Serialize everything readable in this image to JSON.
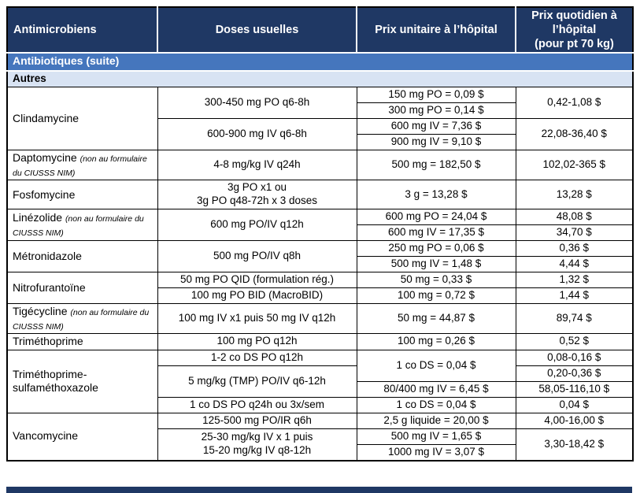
{
  "colors": {
    "header_bg": "#1f3864",
    "header_text": "#ffffff",
    "section_suite_bg": "#4576bd",
    "section_suite_text": "#ffffff",
    "section_autres_bg": "#d8e3f3",
    "section_autres_text": "#000000",
    "border": "#000000",
    "body_text": "#000000"
  },
  "table": {
    "columns": [
      "Antimicrobiens",
      "Doses usuelles",
      "Prix unitaire à l’hôpital",
      "Prix quotidien à l’hôpital\n(pour pt 70 kg)"
    ],
    "rows": [
      {
        "kind": "section-suite",
        "cells": [
          {
            "col": "section",
            "text": "Antibiotiques (suite)",
            "colspan": 4
          }
        ]
      },
      {
        "kind": "section-autres",
        "cells": [
          {
            "col": "section",
            "text": "Autres",
            "colspan": 4
          }
        ]
      },
      {
        "cells": [
          {
            "col": "name",
            "text": "Clindamycine",
            "rowspan": 4
          },
          {
            "col": "dose",
            "text": "300-450 mg PO q6-8h",
            "rowspan": 2
          },
          {
            "col": "unit",
            "text": "150 mg PO = 0,09 $"
          },
          {
            "col": "daily",
            "text": "0,42-1,08 $",
            "rowspan": 2
          }
        ]
      },
      {
        "cells": [
          {
            "col": "unit",
            "text": "300 mg PO = 0,14 $"
          }
        ]
      },
      {
        "cells": [
          {
            "col": "dose",
            "text": "600-900 mg IV q6-8h",
            "rowspan": 2
          },
          {
            "col": "unit",
            "text": "600 mg IV = 7,36 $"
          },
          {
            "col": "daily",
            "text": "22,08-36,40 $",
            "rowspan": 2
          }
        ]
      },
      {
        "cells": [
          {
            "col": "unit",
            "text": "900 mg IV = 9,10 $"
          }
        ]
      },
      {
        "cells": [
          {
            "col": "name",
            "text": "Daptomycine ",
            "note": "(non au formulaire du CIUSSS NIM)"
          },
          {
            "col": "dose",
            "text": "4-8 mg/kg IV q24h"
          },
          {
            "col": "unit",
            "text": "500 mg = 182,50 $"
          },
          {
            "col": "daily",
            "text": "102,02-365 $"
          }
        ]
      },
      {
        "cells": [
          {
            "col": "name",
            "text": "Fosfomycine"
          },
          {
            "col": "dose",
            "text": "3g PO x1 ou\n3g PO q48-72h x 3 doses"
          },
          {
            "col": "unit",
            "text": "3 g = 13,28 $"
          },
          {
            "col": "daily",
            "text": "13,28 $"
          }
        ]
      },
      {
        "cells": [
          {
            "col": "name",
            "text": "Linézolide ",
            "note": "(non au formulaire du CIUSSS NIM)",
            "rowspan": 2
          },
          {
            "col": "dose",
            "text": "600 mg PO/IV q12h",
            "rowspan": 2
          },
          {
            "col": "unit",
            "text": "600 mg PO = 24,04 $"
          },
          {
            "col": "daily",
            "text": "48,08 $"
          }
        ]
      },
      {
        "cells": [
          {
            "col": "unit",
            "text": "600 mg IV = 17,35 $"
          },
          {
            "col": "daily",
            "text": "34,70 $"
          }
        ]
      },
      {
        "cells": [
          {
            "col": "name",
            "text": "Métronidazole",
            "rowspan": 2
          },
          {
            "col": "dose",
            "text": "500 mg PO/IV q8h",
            "rowspan": 2
          },
          {
            "col": "unit",
            "text": "250 mg PO = 0,06 $"
          },
          {
            "col": "daily",
            "text": "0,36 $"
          }
        ]
      },
      {
        "cells": [
          {
            "col": "unit",
            "text": "500 mg IV = 1,48 $"
          },
          {
            "col": "daily",
            "text": "4,44 $"
          }
        ]
      },
      {
        "cells": [
          {
            "col": "name",
            "text": "Nitrofurantoïne",
            "rowspan": 2
          },
          {
            "col": "dose",
            "text": "50 mg PO QID (formulation rég.)"
          },
          {
            "col": "unit",
            "text": "50 mg = 0,33 $"
          },
          {
            "col": "daily",
            "text": "1,32 $"
          }
        ]
      },
      {
        "cells": [
          {
            "col": "dose",
            "text": "100 mg PO BID (MacroBID)"
          },
          {
            "col": "unit",
            "text": "100 mg = 0,72 $"
          },
          {
            "col": "daily",
            "text": "1,44 $"
          }
        ]
      },
      {
        "cells": [
          {
            "col": "name",
            "text": "Tigécycline ",
            "note": "(non au formulaire du CIUSSS NIM)"
          },
          {
            "col": "dose",
            "text": "100 mg IV x1 puis 50 mg IV q12h"
          },
          {
            "col": "unit",
            "text": "50 mg = 44,87 $"
          },
          {
            "col": "daily",
            "text": "89,74 $"
          }
        ]
      },
      {
        "cells": [
          {
            "col": "name",
            "text": "Triméthoprime"
          },
          {
            "col": "dose",
            "text": "100 mg PO q12h"
          },
          {
            "col": "unit",
            "text": "100 mg = 0,26 $"
          },
          {
            "col": "daily",
            "text": "0,52 $"
          }
        ]
      },
      {
        "cells": [
          {
            "col": "name",
            "text": "Triméthoprime-\nsulfaméthoxazole",
            "rowspan": 4
          },
          {
            "col": "dose",
            "text": "1-2 co DS PO q12h"
          },
          {
            "col": "unit",
            "text": "1 co DS = 0,04 $",
            "rowspan": 2
          },
          {
            "col": "daily",
            "text": "0,08-0,16 $"
          }
        ]
      },
      {
        "cells": [
          {
            "col": "dose",
            "text": "5 mg/kg (TMP) PO/IV q6-12h",
            "rowspan": 2
          },
          {
            "col": "daily",
            "text": "0,20-0,36 $"
          }
        ]
      },
      {
        "cells": [
          {
            "col": "unit",
            "text": "80/400 mg IV = 6,45 $"
          },
          {
            "col": "daily",
            "text": "58,05-116,10 $"
          }
        ]
      },
      {
        "cells": [
          {
            "col": "dose",
            "text": "1 co DS PO q24h ou 3x/sem"
          },
          {
            "col": "unit",
            "text": "1 co DS = 0,04 $"
          },
          {
            "col": "daily",
            "text": "0,04 $"
          }
        ]
      },
      {
        "cells": [
          {
            "col": "name",
            "text": "Vancomycine",
            "rowspan": 3
          },
          {
            "col": "dose",
            "text": "125-500 mg PO/IR q6h"
          },
          {
            "col": "unit",
            "text": "2,5 g liquide = 20,00 $"
          },
          {
            "col": "daily",
            "text": "4,00-16,00 $"
          }
        ]
      },
      {
        "cells": [
          {
            "col": "dose",
            "text": "25-30 mg/kg IV x 1 puis\n15-20 mg/kg IV q8-12h",
            "rowspan": 2
          },
          {
            "col": "unit",
            "text": "500 mg IV = 1,65 $"
          },
          {
            "col": "daily",
            "text": "3,30-18,42 $",
            "rowspan": 2
          }
        ]
      },
      {
        "cells": [
          {
            "col": "unit",
            "text": "1000 mg IV = 3,07 $"
          }
        ]
      }
    ]
  }
}
